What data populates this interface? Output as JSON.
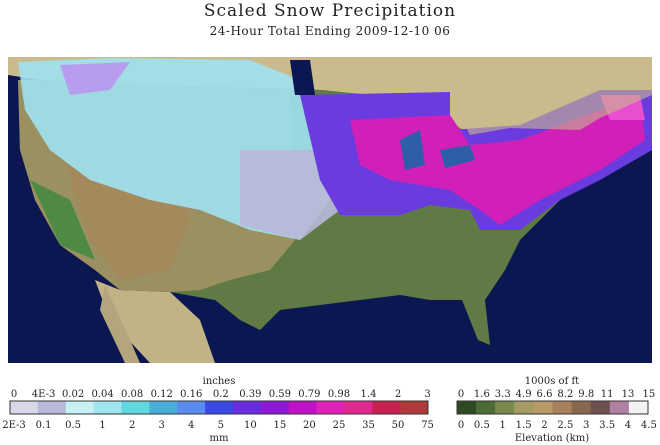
{
  "header": {
    "title": "Scaled Snow Precipitation",
    "subtitle": "24-Hour Total Ending 2009-12-10 06"
  },
  "precip_legend": {
    "top_unit": "inches",
    "bottom_unit": "mm",
    "top_labels": [
      "0",
      "4E-3",
      "0.02",
      "0.04",
      "0.08",
      "0.12",
      "0.16",
      "0.2",
      "0.39",
      "0.59",
      "0.79",
      "0.98",
      "1.4",
      "2",
      "3"
    ],
    "bottom_labels": [
      "2E-3",
      "0.1",
      "0.5",
      "1",
      "2",
      "3",
      "4",
      "5",
      "10",
      "15",
      "20",
      "25",
      "35",
      "50",
      "75"
    ]
  },
  "elevation_legend": {
    "top_unit": "1000s of ft",
    "bottom_unit": "Elevation (km)",
    "top_labels": [
      "0",
      "1.6",
      "3.3",
      "4.9",
      "6.6",
      "8.2",
      "9.8",
      "11",
      "13",
      "15"
    ],
    "bottom_labels": [
      "0",
      "0.5",
      "1",
      "1.5",
      "2",
      "2.5",
      "3",
      "3.5",
      "4",
      "4.5"
    ]
  }
}
